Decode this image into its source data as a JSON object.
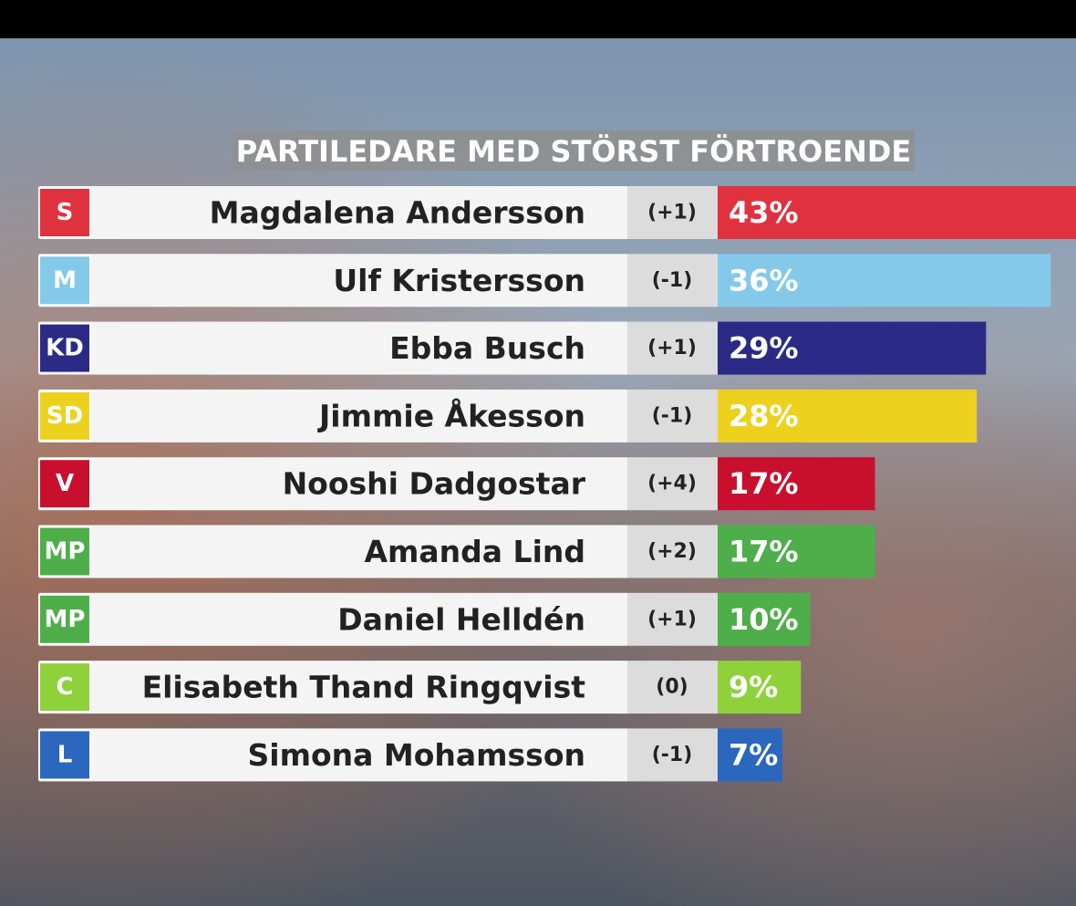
{
  "chart_data": {
    "type": "bar",
    "orientation": "horizontal",
    "title": "PARTILEDARE MED STÖRST FÖRTROENDE",
    "categories": [
      "Magdalena Andersson",
      "Ulf Kristersson",
      "Ebba Busch",
      "Jimmie Åkesson",
      "Nooshi Dadgostar",
      "Amanda Lind",
      "Daniel Helldén",
      "Elisabeth Thand Ringqvist",
      "Simona Mohamsson"
    ],
    "parties": [
      "S",
      "M",
      "KD",
      "SD",
      "V",
      "MP",
      "MP",
      "C",
      "L"
    ],
    "changes": [
      "(+1)",
      "(-1)",
      "(+1)",
      "(-1)",
      "(+4)",
      "(+2)",
      "(+1)",
      "(0)",
      "(-1)"
    ],
    "values": [
      43,
      36,
      29,
      28,
      17,
      17,
      10,
      9,
      7
    ],
    "value_labels": [
      "43%",
      "36%",
      "29%",
      "28%",
      "17%",
      "17%",
      "10%",
      "9%",
      "7%"
    ],
    "colors": [
      "#e0313f",
      "#84c9e9",
      "#2b2a86",
      "#ecd21f",
      "#c8102e",
      "#4eae4a",
      "#4eae4a",
      "#8fd13b",
      "#2a67bd"
    ]
  }
}
